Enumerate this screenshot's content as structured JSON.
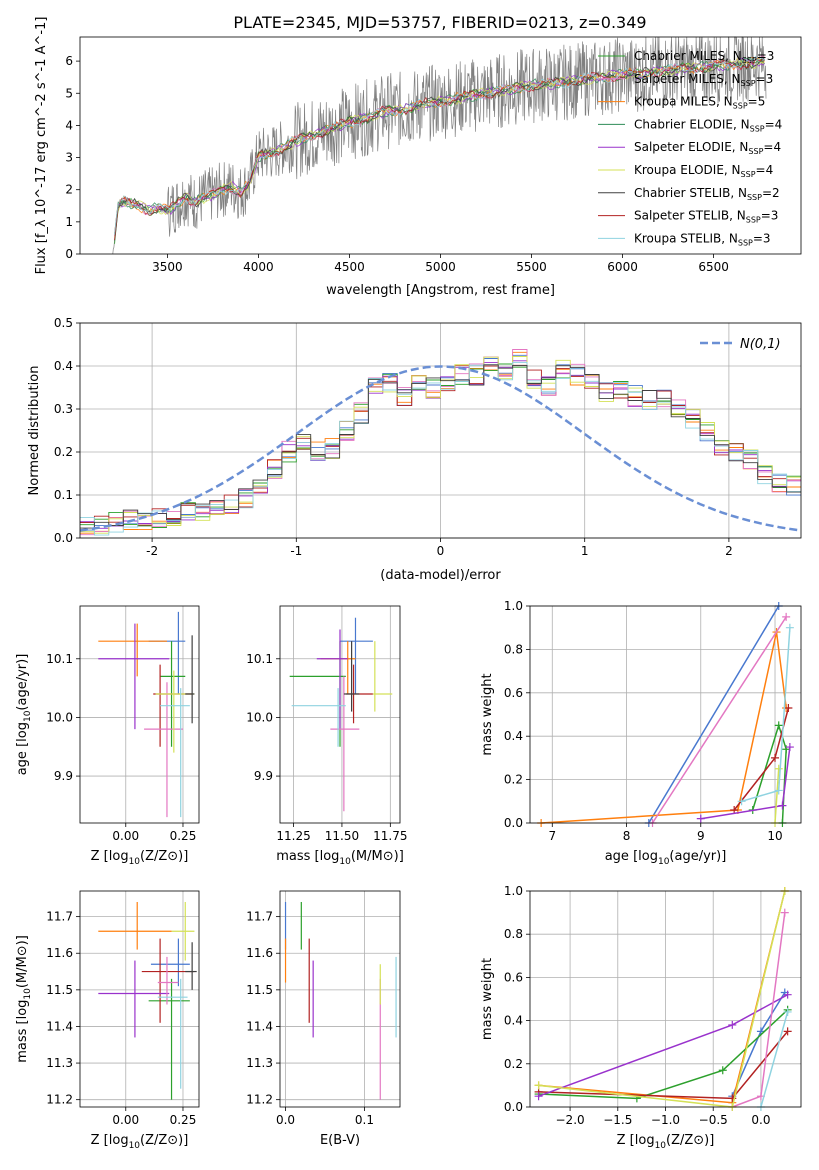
{
  "figure_title": "PLATE=2345, MJD=53757, FIBERID=0213, z=0.349",
  "chart_data": [
    {
      "id": "spectrum",
      "type": "line",
      "title": "PLATE=2345, MJD=53757, FIBERID=0213, z=0.349",
      "xlabel": "wavelength [Angstrom, rest frame]",
      "ylabel": "Flux [f_λ 10^-17 erg cm^-2 s^-1 A^-1]",
      "xlim": [
        3020,
        6980
      ],
      "ylim": [
        0,
        6.75
      ],
      "xticks": [
        3500,
        4000,
        4500,
        5000,
        5500,
        6000,
        6500
      ],
      "yticks": [
        0,
        1,
        2,
        3,
        4,
        5,
        6
      ],
      "grid": false,
      "legend_position": "right",
      "observed": {
        "color": "#808080",
        "x": [
          3200,
          3230,
          3260,
          3300,
          3350,
          3400,
          3450,
          3500,
          3550,
          3600,
          3650,
          3700,
          3750,
          3800,
          3850,
          3900,
          3950,
          4000,
          4100,
          4200,
          4300,
          4400,
          4500,
          4600,
          4700,
          4800,
          4900,
          5000,
          5100,
          5200,
          5300,
          5400,
          5500,
          5600,
          5700,
          5800,
          5900,
          6000,
          6100,
          6200,
          6300,
          6400,
          6500,
          6600,
          6700,
          6790
        ],
        "y": [
          0,
          1.5,
          1.65,
          1.55,
          1.5,
          1.35,
          1.45,
          1.35,
          1.55,
          1.8,
          1.6,
          1.75,
          1.85,
          2.0,
          2.1,
          1.9,
          2.2,
          3.05,
          3.2,
          3.5,
          3.7,
          3.9,
          4.1,
          4.25,
          4.45,
          4.5,
          4.65,
          4.75,
          4.85,
          4.95,
          5.05,
          5.15,
          5.25,
          5.3,
          5.35,
          5.45,
          5.5,
          5.6,
          5.6,
          5.7,
          5.75,
          5.8,
          5.85,
          5.9,
          5.95,
          6.0
        ],
        "noise_starts_at": 3500
      },
      "series": [
        {
          "name": "Chabrier MILES, N_SSP=3",
          "label_main": "Chabrier MILES, N",
          "label_sub": "SSP",
          "label_end": "=3",
          "color": "#2ca02c"
        },
        {
          "name": "Salpeter MILES, N_SSP=3",
          "label_main": "Salpeter MILES, N",
          "label_sub": "SSP",
          "label_end": "=3",
          "color": "#e377c2"
        },
        {
          "name": "Kroupa MILES, N_SSP=5",
          "label_main": "Kroupa MILES, N",
          "label_sub": "SSP",
          "label_end": "=5",
          "color": "#ff7f0e"
        },
        {
          "name": "Chabrier ELODIE, N_SSP=4",
          "label_main": "Chabrier ELODIE, N",
          "label_sub": "SSP",
          "label_end": "=4",
          "color": "#2e8b57"
        },
        {
          "name": "Salpeter ELODIE, N_SSP=4",
          "label_main": "Salpeter ELODIE, N",
          "label_sub": "SSP",
          "label_end": "=4",
          "color": "#9932cc"
        },
        {
          "name": "Kroupa ELODIE, N_SSP=4",
          "label_main": "Kroupa ELODIE, N",
          "label_sub": "SSP",
          "label_end": "=4",
          "color": "#d4e157"
        },
        {
          "name": "Chabrier STELIB, N_SSP=2",
          "label_main": "Chabrier STELIB, N",
          "label_sub": "SSP",
          "label_end": "=2",
          "color": "#404040"
        },
        {
          "name": "Salpeter STELIB, N_SSP=3",
          "label_main": "Salpeter STELIB, N",
          "label_sub": "SSP",
          "label_end": "=3",
          "color": "#b22222"
        },
        {
          "name": "Kroupa STELIB, N_SSP=3",
          "label_main": "Kroupa STELIB, N",
          "label_sub": "SSP",
          "label_end": "=3",
          "color": "#8fd3e0"
        }
      ]
    },
    {
      "id": "residuals",
      "type": "line",
      "xlabel": "(data-model)/error",
      "ylabel": "Normed distribution",
      "xlim": [
        -2.5,
        2.5
      ],
      "ylim": [
        0,
        0.5
      ],
      "xticks": [
        -2,
        -1,
        0,
        1,
        2
      ],
      "yticks": [
        0.0,
        0.1,
        0.2,
        0.3,
        0.4,
        0.5
      ],
      "grid": true,
      "legend_position": "top-right",
      "legend": "N(0,1)",
      "gaussian": {
        "color": "#6a8fd4",
        "mu": 0,
        "sigma": 1
      },
      "histogram": {
        "bin_start": -2.5,
        "bin_width": 0.1,
        "base_values": [
          0.03,
          0.03,
          0.035,
          0.04,
          0.04,
          0.045,
          0.05,
          0.06,
          0.065,
          0.07,
          0.08,
          0.095,
          0.115,
          0.16,
          0.2,
          0.22,
          0.2,
          0.21,
          0.25,
          0.29,
          0.35,
          0.36,
          0.33,
          0.36,
          0.35,
          0.36,
          0.38,
          0.38,
          0.41,
          0.39,
          0.42,
          0.37,
          0.35,
          0.39,
          0.38,
          0.37,
          0.34,
          0.34,
          0.33,
          0.32,
          0.33,
          0.3,
          0.28,
          0.25,
          0.21,
          0.2,
          0.18,
          0.15,
          0.13,
          0.12
        ],
        "base_values_right": [
          0.12,
          0.11,
          0.09,
          0.08,
          0.07,
          0.06,
          0.055,
          0.05,
          0.045,
          0.04,
          0.035,
          0.03,
          0.03
        ]
      }
    },
    {
      "id": "age-vs-z",
      "type": "scatter",
      "xlabel": "Z [log10(Z/Z⊙)]",
      "xlabel_main": "Z [log",
      "xlabel_sub": "10",
      "xlabel_end": "(Z/Z⊙)]",
      "ylabel": "age [log10(age/yr)]",
      "xlim": [
        -0.2,
        0.32
      ],
      "ylim": [
        9.82,
        10.19
      ],
      "xticks": [
        0.0,
        0.25
      ],
      "xticklabels": [
        "0.00",
        "0.25"
      ],
      "yticks": [
        9.9,
        10.0,
        10.1
      ],
      "grid": true,
      "points": [
        {
          "x": 0.23,
          "y": 10.13,
          "xerr": [
            0.13,
            0.03
          ],
          "yerr": [
            0.09,
            0.05
          ]
        },
        {
          "x": 0.05,
          "y": 10.13,
          "xerr": [
            0.17,
            0.13
          ],
          "yerr": [
            0.06,
            0.03
          ]
        },
        {
          "x": 0.2,
          "y": 10.07,
          "xerr": [
            0.05,
            0.06
          ],
          "yerr": [
            0.12,
            0.06
          ]
        },
        {
          "x": 0.15,
          "y": 10.04,
          "xerr": [
            0.03,
            0.14
          ],
          "yerr": [
            0.09,
            0.05
          ]
        },
        {
          "x": 0.04,
          "y": 10.1,
          "xerr": [
            0.16,
            0.15
          ],
          "yerr": [
            0.12,
            0.06
          ]
        },
        {
          "x": 0.18,
          "y": 9.98,
          "xerr": [
            0.1,
            0.07
          ],
          "yerr": [
            0.15,
            0.08
          ]
        },
        {
          "x": 0.21,
          "y": 10.04,
          "xerr": [
            0.08,
            0.09
          ],
          "yerr": [
            0.1,
            0.04
          ]
        },
        {
          "x": 0.24,
          "y": 10.02,
          "xerr": [
            0.09,
            0.04
          ],
          "yerr": [
            0.19,
            0.03
          ]
        },
        {
          "x": 0.29,
          "y": 10.04,
          "xerr": [
            0.03,
            0.01
          ],
          "yerr": [
            0.05,
            0.1
          ]
        }
      ]
    },
    {
      "id": "age-vs-mass",
      "type": "scatter",
      "xlabel": "mass [log10(M/M⊙)]",
      "xlabel_main": "mass [log",
      "xlabel_sub": "10",
      "xlabel_end": "(M/M⊙)]",
      "xlim": [
        11.18,
        11.8
      ],
      "ylim": [
        9.82,
        10.19
      ],
      "xticks": [
        11.25,
        11.5,
        11.75
      ],
      "xticklabels": [
        "11.25",
        "11.50",
        "11.75"
      ],
      "yticks": [
        9.9,
        10.0,
        10.1
      ],
      "grid": true,
      "points": [
        {
          "x": 11.57,
          "y": 10.13,
          "xerr": [
            0.08,
            0.09
          ],
          "yerr": [
            0.09,
            0.04
          ]
        },
        {
          "x": 11.53,
          "y": 10.1,
          "xerr": [
            0.14,
            0.04
          ],
          "yerr": [
            0.06,
            0.03
          ]
        },
        {
          "x": 11.49,
          "y": 10.07,
          "xerr": [
            0.26,
            0.03
          ],
          "yerr": [
            0.12,
            0.06
          ]
        },
        {
          "x": 11.56,
          "y": 10.04,
          "xerr": [
            0.04,
            0.1
          ],
          "yerr": [
            0.05,
            0.05
          ]
        },
        {
          "x": 11.49,
          "y": 10.1,
          "xerr": [
            0.12,
            0.04
          ],
          "yerr": [
            0.12,
            0.05
          ]
        },
        {
          "x": 11.51,
          "y": 9.98,
          "xerr": [
            0.07,
            0.08
          ],
          "yerr": [
            0.14,
            0.09
          ]
        },
        {
          "x": 11.67,
          "y": 10.04,
          "xerr": [
            0.01,
            0.09
          ],
          "yerr": [
            0.03,
            0.09
          ]
        },
        {
          "x": 11.48,
          "y": 10.02,
          "xerr": [
            0.24,
            0.04
          ],
          "yerr": [
            0.07,
            0.03
          ]
        },
        {
          "x": 11.55,
          "y": 10.04,
          "xerr": [
            0.04,
            0.04
          ],
          "yerr": [
            0.03,
            0.09
          ]
        }
      ]
    },
    {
      "id": "weight-vs-age",
      "type": "line",
      "xlabel": "age [log10(age/yr)]",
      "xlabel_main": "age  [log",
      "xlabel_sub": "10",
      "xlabel_end": "(age/yr)]",
      "ylabel": "mass weight",
      "xlim": [
        6.7,
        10.35
      ],
      "ylim": [
        0,
        1.0
      ],
      "xticks": [
        7,
        8,
        9,
        10
      ],
      "yticks": [
        0.0,
        0.2,
        0.4,
        0.6,
        0.8,
        1.0
      ],
      "grid": true,
      "series": [
        {
          "x": [
            8.3,
            10.05
          ],
          "y": [
            0.0,
            1.0
          ]
        },
        {
          "x": [
            6.85,
            9.5,
            10.02,
            10.15
          ],
          "y": [
            0.0,
            0.06,
            0.88,
            0.53
          ]
        },
        {
          "x": [
            9.7,
            10.05,
            10.15,
            10.1
          ],
          "y": [
            0.06,
            0.45,
            0.34,
            0.0
          ]
        },
        {
          "x": [
            9.45,
            10.0,
            10.18
          ],
          "y": [
            0.06,
            0.3,
            0.53
          ]
        },
        {
          "x": [
            9.0,
            10.1,
            10.2
          ],
          "y": [
            0.02,
            0.08,
            0.35
          ]
        },
        {
          "x": [
            8.35,
            10.15
          ],
          "y": [
            0.0,
            0.95
          ]
        },
        {
          "x": [
            10.0,
            10.05
          ],
          "y": [
            0.0,
            0.25
          ]
        },
        {
          "x": [
            9.55,
            10.05,
            10.2
          ],
          "y": [
            0.1,
            0.15,
            0.9
          ]
        }
      ]
    },
    {
      "id": "mass-vs-z",
      "type": "scatter",
      "xlabel": "Z [log10(Z/Z⊙)]",
      "xlabel_main": "Z [log",
      "xlabel_sub": "10",
      "xlabel_end": "(Z/Z⊙)]",
      "ylabel": "mass [log10(M/M⊙)]",
      "xlim": [
        -0.2,
        0.32
      ],
      "ylim": [
        11.18,
        11.77
      ],
      "xticks": [
        0.0,
        0.25
      ],
      "xticklabels": [
        "0.00",
        "0.25"
      ],
      "yticks": [
        11.2,
        11.3,
        11.4,
        11.5,
        11.6,
        11.7
      ],
      "grid": true,
      "points": [
        {
          "x": 0.23,
          "y": 11.57,
          "xerr": [
            0.12,
            0.05
          ],
          "yerr": [
            0.06,
            0.07
          ]
        },
        {
          "x": 0.05,
          "y": 11.66,
          "xerr": [
            0.17,
            0.15
          ],
          "yerr": [
            0.05,
            0.08
          ]
        },
        {
          "x": 0.2,
          "y": 11.47,
          "xerr": [
            0.1,
            0.08
          ],
          "yerr": [
            0.27,
            0.06
          ]
        },
        {
          "x": 0.15,
          "y": 11.55,
          "xerr": [
            0.08,
            0.15
          ],
          "yerr": [
            0.14,
            0.09
          ]
        },
        {
          "x": 0.04,
          "y": 11.49,
          "xerr": [
            0.16,
            0.15
          ],
          "yerr": [
            0.12,
            0.09
          ]
        },
        {
          "x": 0.18,
          "y": 11.52,
          "xerr": [
            0.04,
            0.05
          ],
          "yerr": [
            0.06,
            0.07
          ]
        },
        {
          "x": 0.26,
          "y": 11.66,
          "xerr": [
            0.06,
            0.04
          ],
          "yerr": [
            0.08,
            0.08
          ]
        },
        {
          "x": 0.24,
          "y": 11.48,
          "xerr": [
            0.1,
            0.03
          ],
          "yerr": [
            0.25,
            0.05
          ]
        },
        {
          "x": 0.29,
          "y": 11.55,
          "xerr": [
            0.03,
            0.02
          ],
          "yerr": [
            0.05,
            0.08
          ]
        }
      ]
    },
    {
      "id": "mass-vs-ebv",
      "type": "scatter",
      "xlabel": "E(B-V)",
      "xlim": [
        -0.007,
        0.145
      ],
      "ylim": [
        11.18,
        11.77
      ],
      "xticks": [
        0.0,
        0.1
      ],
      "xticklabels": [
        "0.0",
        "0.1"
      ],
      "yticks": [
        11.2,
        11.3,
        11.4,
        11.5,
        11.6,
        11.7
      ],
      "grid": true,
      "points": [
        {
          "x": 0.0,
          "y": 11.66,
          "yerr": [
            0.05,
            0.08
          ]
        },
        {
          "x": 0.0,
          "y": 11.57,
          "yerr": [
            0.05,
            0.07
          ]
        },
        {
          "x": 0.02,
          "y": 11.66,
          "yerr": [
            0.05,
            0.08
          ]
        },
        {
          "x": 0.03,
          "y": 11.55,
          "yerr": [
            0.14,
            0.09
          ]
        },
        {
          "x": 0.035,
          "y": 11.49,
          "yerr": [
            0.12,
            0.09
          ]
        },
        {
          "x": 0.12,
          "y": 11.47,
          "yerr": [
            0.27,
            0.06
          ]
        },
        {
          "x": 0.12,
          "y": 11.52,
          "yerr": [
            0.06,
            0.05
          ]
        },
        {
          "x": 0.14,
          "y": 11.52,
          "yerr": [
            0.15,
            0.07
          ]
        }
      ]
    },
    {
      "id": "weight-vs-z",
      "type": "line",
      "xlabel": "Z [log10(Z/Z⊙)]",
      "xlabel_main": "Z [log",
      "xlabel_sub": "10",
      "xlabel_end": "(Z/Z⊙)]",
      "ylabel": "mass weight",
      "xlim": [
        -2.42,
        0.42
      ],
      "ylim": [
        0,
        1.0
      ],
      "xticks": [
        -2.0,
        -1.5,
        -1.0,
        -0.5,
        0.0
      ],
      "xticklabels": [
        "−2.0",
        "−1.5",
        "−1.0",
        "−0.5",
        "0.0"
      ],
      "yticks": [
        0.0,
        0.2,
        0.4,
        0.6,
        0.8,
        1.0
      ],
      "grid": true,
      "series": [
        {
          "x": [
            -0.3,
            0.0,
            0.25
          ],
          "y": [
            0.05,
            0.35,
            0.53
          ]
        },
        {
          "x": [
            -2.33,
            -0.3,
            0.25
          ],
          "y": [
            0.1,
            0.02,
            1.0
          ]
        },
        {
          "x": [
            -2.33,
            -1.3,
            -0.4,
            0.28
          ],
          "y": [
            0.06,
            0.04,
            0.17,
            0.45
          ]
        },
        {
          "x": [
            -2.33,
            -0.3,
            0.28
          ],
          "y": [
            0.07,
            0.04,
            0.35
          ]
        },
        {
          "x": [
            -2.33,
            -0.3,
            0.28
          ],
          "y": [
            0.05,
            0.38,
            0.52
          ]
        },
        {
          "x": [
            -0.3,
            0.0,
            0.25
          ],
          "y": [
            0.0,
            0.05,
            0.9
          ]
        },
        {
          "x": [
            -2.33,
            -0.3,
            0.25
          ],
          "y": [
            0.1,
            0.0,
            1.0
          ]
        },
        {
          "x": [
            0.0,
            0.28
          ],
          "y": [
            0.0,
            0.44
          ]
        }
      ]
    }
  ]
}
